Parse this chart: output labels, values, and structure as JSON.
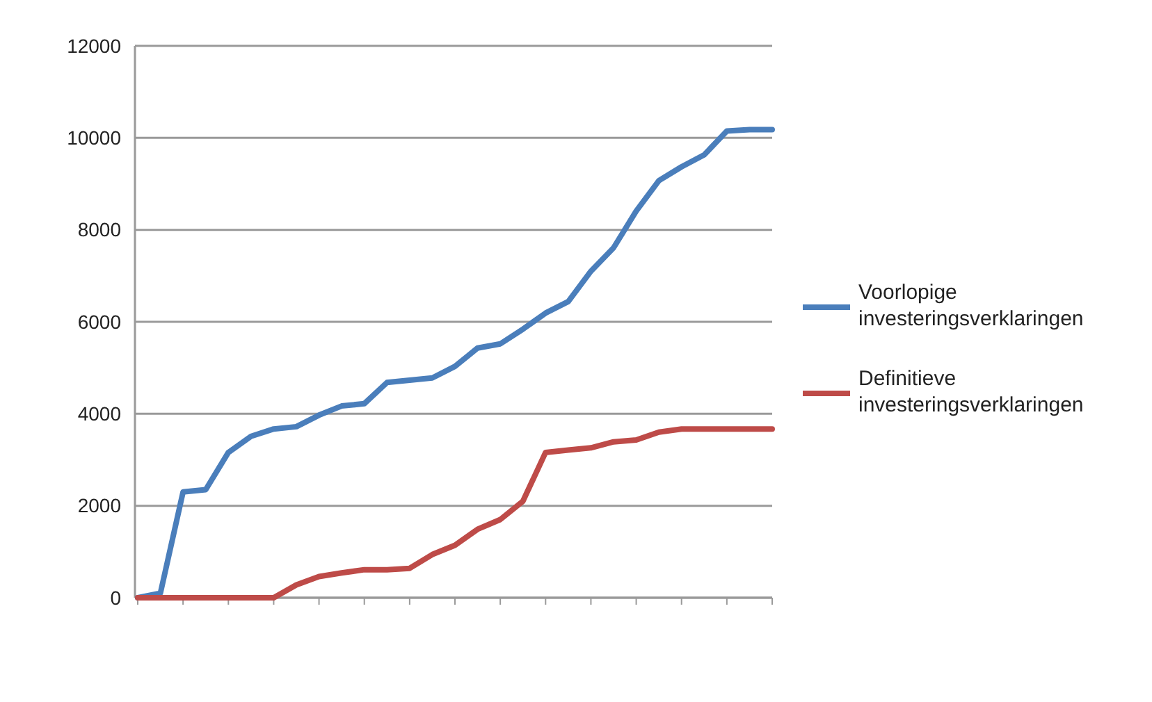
{
  "chart_data": {
    "type": "line",
    "categories": [
      null,
      null,
      null,
      null,
      null,
      null,
      null,
      null,
      null,
      null,
      null,
      null,
      null,
      null,
      null,
      null,
      null,
      null,
      null,
      null,
      null,
      null,
      null,
      null,
      null,
      null,
      null,
      null,
      null
    ],
    "series": [
      {
        "name": "Voorlopige investeringsverklaringen",
        "color": "#4a7ebb",
        "values": [
          0,
          100,
          2300,
          2350,
          3160,
          3510,
          3670,
          3720,
          3970,
          4170,
          4220,
          4680,
          4730,
          4780,
          5030,
          5430,
          5520,
          5840,
          6190,
          6440,
          7100,
          7610,
          8410,
          9070,
          9370,
          9630,
          10150,
          10180,
          10180
        ]
      },
      {
        "name": "Definitieve investeringsverklaringen",
        "color": "#be4b48",
        "values": [
          0,
          0,
          0,
          0,
          0,
          0,
          0,
          280,
          460,
          540,
          610,
          610,
          640,
          940,
          1140,
          1490,
          1700,
          2100,
          3160,
          3210,
          3260,
          3390,
          3430,
          3600,
          3670,
          3670,
          3670,
          3670,
          3670
        ]
      }
    ],
    "ylim": [
      0,
      12000
    ],
    "yticks": [
      0,
      2000,
      4000,
      6000,
      8000,
      10000,
      12000
    ],
    "grid": "y",
    "legend": "right",
    "marker": "none",
    "line_style": "solid"
  }
}
